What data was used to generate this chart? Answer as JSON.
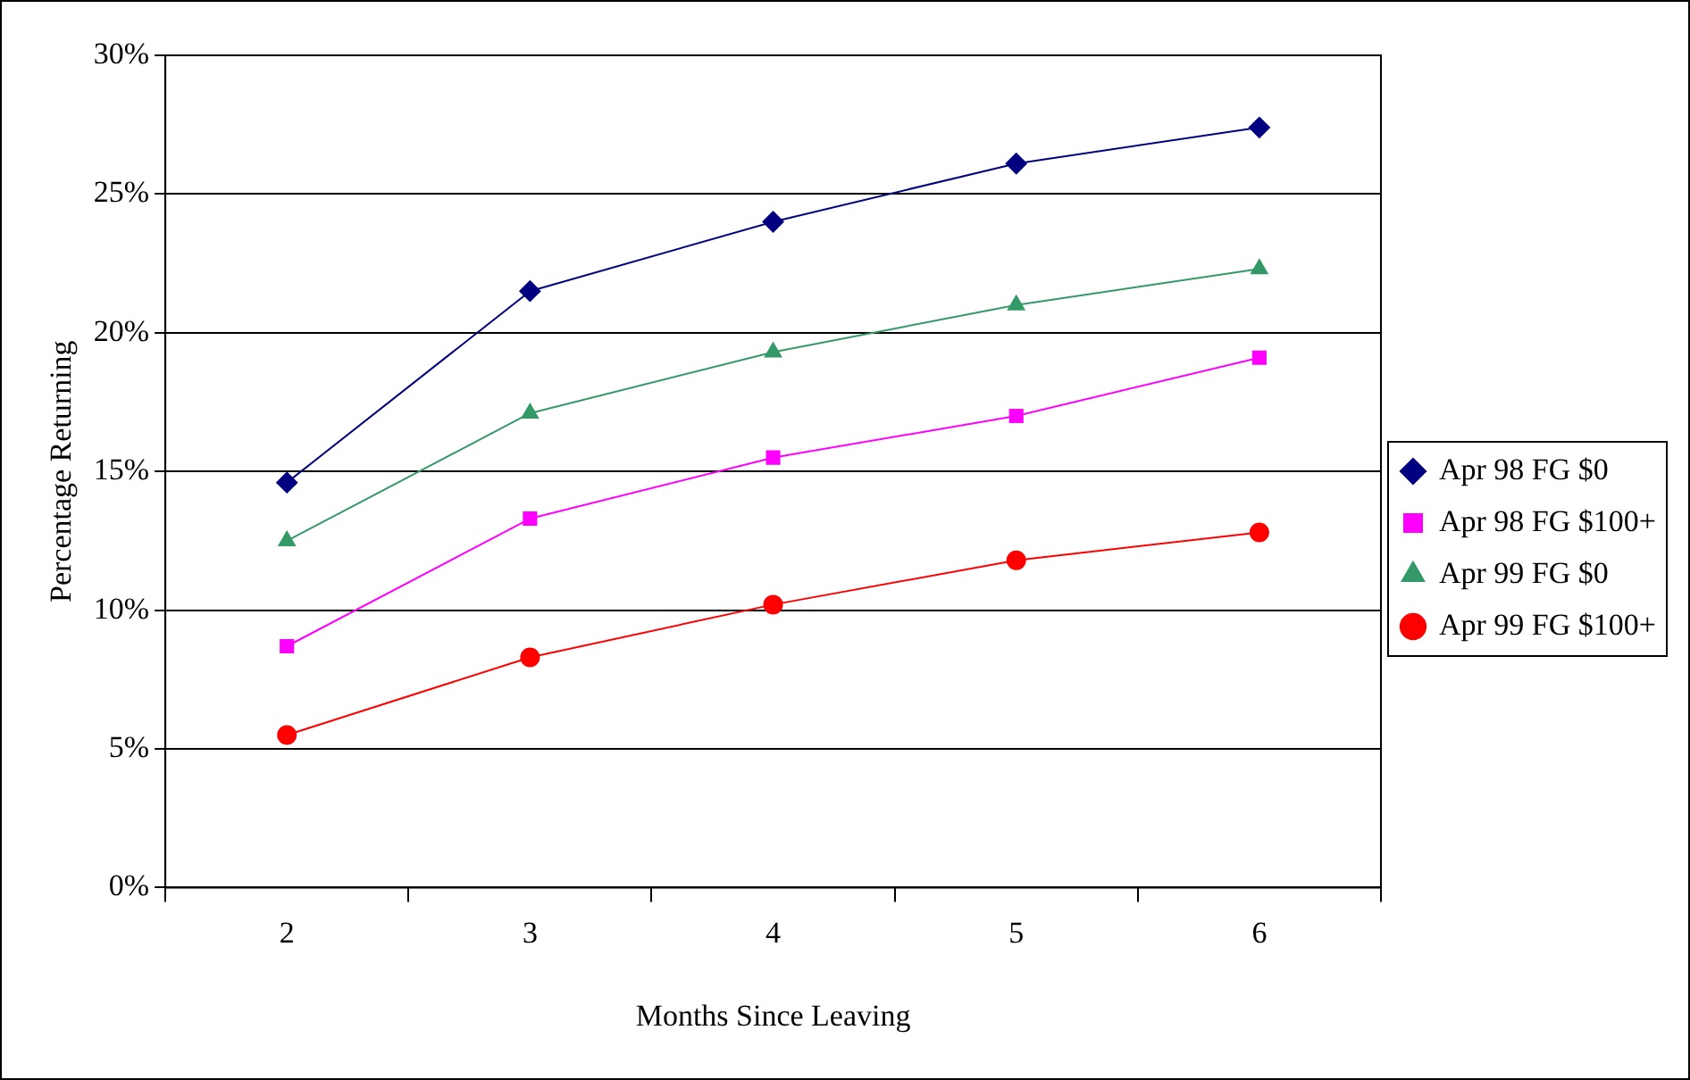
{
  "chart_data": {
    "type": "line",
    "xlabel": "Months Since Leaving",
    "ylabel": "Percentage Returning",
    "categories": [
      "2",
      "3",
      "4",
      "5",
      "6"
    ],
    "ylim": [
      0,
      30
    ],
    "yticks": [
      {
        "value": 0,
        "label": "0%"
      },
      {
        "value": 5,
        "label": "5%"
      },
      {
        "value": 10,
        "label": "10%"
      },
      {
        "value": 15,
        "label": "15%"
      },
      {
        "value": 20,
        "label": "20%"
      },
      {
        "value": 25,
        "label": "25%"
      },
      {
        "value": 30,
        "label": "30%"
      }
    ],
    "grid": "y",
    "legend": "right",
    "line_style": "solid",
    "series": [
      {
        "name": "Apr 98 FG $0",
        "color": "#000080",
        "marker": "diamond",
        "values": [
          14.6,
          21.5,
          24.0,
          26.1,
          27.4
        ]
      },
      {
        "name": "Apr 98 FG $100+",
        "color": "#ff00ff",
        "marker": "square",
        "values": [
          8.7,
          13.3,
          15.5,
          17.0,
          19.1
        ]
      },
      {
        "name": "Apr 99 FG $0",
        "color": "#339966",
        "marker": "triangle",
        "values": [
          12.5,
          17.1,
          19.3,
          21.0,
          22.3
        ]
      },
      {
        "name": "Apr 99 FG $100+",
        "color": "#ff0000",
        "marker": "circle",
        "values": [
          5.5,
          8.3,
          10.2,
          11.8,
          12.8
        ]
      }
    ]
  }
}
